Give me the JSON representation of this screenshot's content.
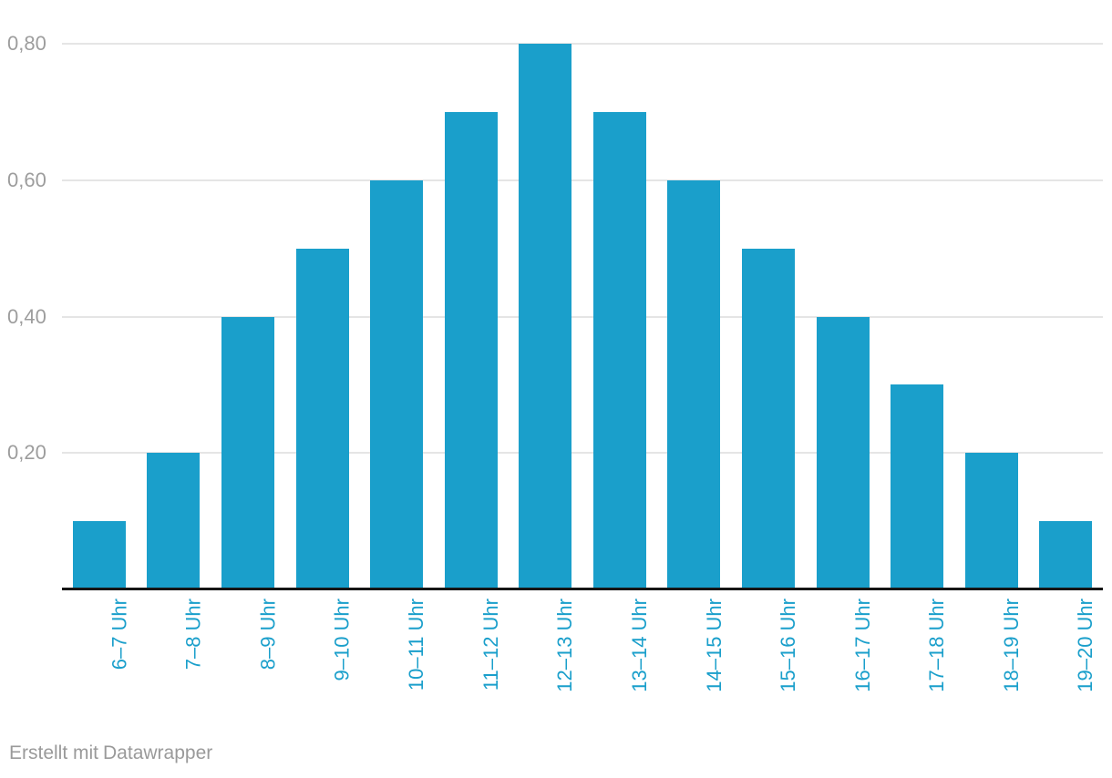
{
  "chart_data": {
    "type": "bar",
    "categories": [
      "6–7 Uhr",
      "7–8 Uhr",
      "8–9 Uhr",
      "9–10 Uhr",
      "10–11 Uhr",
      "11–12 Uhr",
      "12–13 Uhr",
      "13–14 Uhr",
      "14–15 Uhr",
      "15–16 Uhr",
      "16–17 Uhr",
      "17–18 Uhr",
      "18–19 Uhr",
      "19–20 Uhr"
    ],
    "values": [
      0.1,
      0.2,
      0.4,
      0.5,
      0.6,
      0.7,
      0.8,
      0.7,
      0.6,
      0.5,
      0.4,
      0.3,
      0.2,
      0.1
    ],
    "title": "",
    "xlabel": "",
    "ylabel": "",
    "ylim": [
      0,
      0.8
    ],
    "yticks": [
      0.2,
      0.4,
      0.6,
      0.8
    ],
    "ytick_labels": [
      "0,20",
      "0,40",
      "0,60",
      "0,80"
    ],
    "grid": true,
    "legend": null,
    "colors": {
      "bar": "#1a9fcb",
      "x_tick_label": "#1a9fcb",
      "y_tick_label": "#9d9d9d",
      "gridline": "#e5e5e5",
      "axis_line": "#161616",
      "background": "#ffffff"
    }
  },
  "footer": {
    "prefix": "Erstellt mit",
    "link_label": "Datawrapper",
    "color": "#9a9a9a"
  }
}
